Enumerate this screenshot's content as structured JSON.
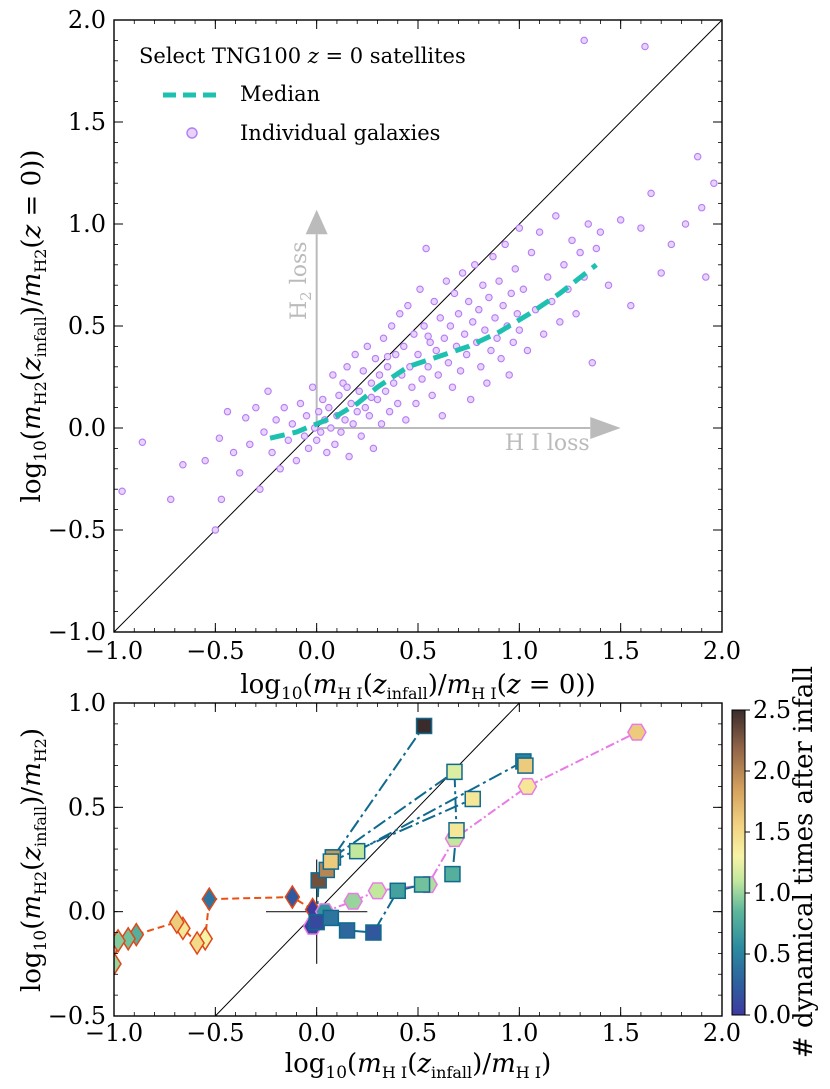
{
  "chart_data": [
    {
      "type": "scatter",
      "panel": "top",
      "xlabel": "log10(mHI(z_infall)/mHI(z=0))",
      "ylabel": "log10(mH2(z_infall)/mH2(z=0))",
      "xlim": [
        -1.0,
        2.0
      ],
      "ylim": [
        -1.0,
        2.0
      ],
      "xticks": [
        -1.0,
        -0.5,
        0.0,
        0.5,
        1.0,
        1.5,
        2.0
      ],
      "yticks": [
        -1.0,
        -0.5,
        0.0,
        0.5,
        1.0,
        1.5,
        2.0
      ],
      "xtick_labels": [
        "−1.0",
        "−0.5",
        "0.0",
        "0.5",
        "1.0",
        "1.5",
        "2.0"
      ],
      "ytick_labels": [
        "−1.0",
        "−0.5",
        "0.0",
        "0.5",
        "1.0",
        "1.5",
        "2.0"
      ],
      "legend": {
        "title": "Select TNG100 z = 0 satellites",
        "entries": [
          "Median",
          "Individual galaxies"
        ],
        "placement": "top-left"
      },
      "annotations": [
        {
          "text": "H I loss",
          "arrow": "from (0,0) to (1.5,0)"
        },
        {
          "text": "H2 loss",
          "arrow": "from (0,0) to (0,1.07)"
        }
      ],
      "one_to_one_line": true,
      "median": {
        "name": "Median",
        "color": "#1ec1b0",
        "x": [
          -0.23,
          -0.1,
          0.0,
          0.1,
          0.2,
          0.3,
          0.45,
          0.6,
          0.75,
          0.9,
          1.05,
          1.2,
          1.38
        ],
        "y": [
          -0.05,
          -0.02,
          0.02,
          0.06,
          0.12,
          0.2,
          0.3,
          0.35,
          0.4,
          0.47,
          0.56,
          0.66,
          0.8
        ]
      },
      "scatter_color": "#b77cf2",
      "scatter_fill": "#e6d4ff",
      "points": [
        [
          -0.96,
          -0.31
        ],
        [
          -0.86,
          -0.07
        ],
        [
          -0.72,
          -0.35
        ],
        [
          -0.66,
          -0.18
        ],
        [
          -0.55,
          -0.16
        ],
        [
          -0.48,
          -0.05
        ],
        [
          -0.47,
          -0.35
        ],
        [
          -0.44,
          0.08
        ],
        [
          -0.41,
          -0.12
        ],
        [
          -0.38,
          -0.22
        ],
        [
          -0.35,
          0.05
        ],
        [
          -0.33,
          -0.08
        ],
        [
          -0.3,
          0.1
        ],
        [
          -0.28,
          -0.3
        ],
        [
          -0.26,
          -0.02
        ],
        [
          -0.24,
          0.18
        ],
        [
          -0.22,
          -0.12
        ],
        [
          -0.2,
          0.04
        ],
        [
          -0.18,
          -0.2
        ],
        [
          -0.16,
          0.1
        ],
        [
          -0.14,
          -0.06
        ],
        [
          -0.12,
          0.02
        ],
        [
          -0.1,
          -0.16
        ],
        [
          -0.08,
          0.12
        ],
        [
          -0.06,
          -0.04
        ],
        [
          -0.05,
          0.06
        ],
        [
          -0.04,
          -0.1
        ],
        [
          -0.02,
          0.2
        ],
        [
          -0.01,
          0.0
        ],
        [
          0.0,
          -0.06
        ],
        [
          0.01,
          0.08
        ],
        [
          0.02,
          -0.02
        ],
        [
          0.03,
          0.14
        ],
        [
          0.04,
          0.04
        ],
        [
          0.05,
          -0.12
        ],
        [
          0.06,
          0.1
        ],
        [
          0.07,
          0.0
        ],
        [
          0.08,
          0.26
        ],
        [
          0.09,
          -0.08
        ],
        [
          0.1,
          0.06
        ],
        [
          0.11,
          0.16
        ],
        [
          0.12,
          -0.02
        ],
        [
          0.13,
          0.22
        ],
        [
          0.14,
          0.04
        ],
        [
          0.15,
          0.3
        ],
        [
          0.16,
          -0.14
        ],
        [
          0.17,
          0.12
        ],
        [
          0.18,
          0.02
        ],
        [
          0.19,
          0.36
        ],
        [
          0.2,
          0.08
        ],
        [
          0.21,
          0.18
        ],
        [
          0.22,
          -0.04
        ],
        [
          0.23,
          0.28
        ],
        [
          0.24,
          0.1
        ],
        [
          0.25,
          0.4
        ],
        [
          0.26,
          0.06
        ],
        [
          0.27,
          0.22
        ],
        [
          0.28,
          -0.1
        ],
        [
          0.29,
          0.34
        ],
        [
          0.3,
          0.14
        ],
        [
          0.31,
          0.26
        ],
        [
          0.32,
          0.02
        ],
        [
          0.33,
          0.44
        ],
        [
          0.34,
          0.18
        ],
        [
          0.35,
          0.3
        ],
        [
          0.36,
          0.08
        ],
        [
          0.37,
          0.5
        ],
        [
          0.38,
          0.22
        ],
        [
          0.39,
          0.36
        ],
        [
          0.4,
          0.12
        ],
        [
          0.41,
          0.56
        ],
        [
          0.42,
          0.26
        ],
        [
          0.43,
          0.4
        ],
        [
          0.44,
          0.04
        ],
        [
          0.45,
          0.6
        ],
        [
          0.46,
          0.3
        ],
        [
          0.47,
          0.2
        ],
        [
          0.48,
          0.46
        ],
        [
          0.49,
          0.12
        ],
        [
          0.5,
          0.36
        ],
        [
          0.51,
          0.68
        ],
        [
          0.52,
          0.24
        ],
        [
          0.53,
          0.5
        ],
        [
          0.54,
          0.88
        ],
        [
          0.55,
          0.3
        ],
        [
          0.56,
          0.42
        ],
        [
          0.57,
          0.16
        ],
        [
          0.58,
          0.62
        ],
        [
          0.59,
          0.38
        ],
        [
          0.6,
          0.26
        ],
        [
          0.61,
          0.54
        ],
        [
          0.62,
          0.06
        ],
        [
          0.63,
          0.44
        ],
        [
          0.64,
          0.72
        ],
        [
          0.65,
          0.32
        ],
        [
          0.66,
          0.5
        ],
        [
          0.67,
          0.2
        ],
        [
          0.68,
          0.66
        ],
        [
          0.69,
          0.4
        ],
        [
          0.7,
          0.56
        ],
        [
          0.71,
          0.28
        ],
        [
          0.72,
          0.76
        ],
        [
          0.73,
          0.46
        ],
        [
          0.74,
          0.36
        ],
        [
          0.75,
          0.62
        ],
        [
          0.76,
          0.14
        ],
        [
          0.77,
          0.52
        ],
        [
          0.78,
          0.8
        ],
        [
          0.79,
          0.42
        ],
        [
          0.8,
          0.58
        ],
        [
          0.81,
          0.3
        ],
        [
          0.82,
          0.7
        ],
        [
          0.83,
          0.48
        ],
        [
          0.84,
          0.22
        ],
        [
          0.85,
          0.64
        ],
        [
          0.86,
          0.38
        ],
        [
          0.87,
          0.84
        ],
        [
          0.88,
          0.54
        ],
        [
          0.89,
          0.44
        ],
        [
          0.9,
          0.72
        ],
        [
          0.91,
          0.34
        ],
        [
          0.92,
          0.6
        ],
        [
          0.93,
          0.9
        ],
        [
          0.94,
          0.5
        ],
        [
          0.95,
          0.26
        ],
        [
          0.96,
          0.66
        ],
        [
          0.97,
          0.42
        ],
        [
          0.98,
          0.78
        ],
        [
          0.99,
          0.56
        ],
        [
          1.0,
          0.48
        ],
        [
          1.02,
          0.68
        ],
        [
          1.04,
          0.38
        ],
        [
          1.06,
          0.86
        ],
        [
          1.08,
          0.58
        ],
        [
          1.1,
          0.96
        ],
        [
          1.12,
          0.46
        ],
        [
          1.14,
          0.74
        ],
        [
          1.16,
          0.62
        ],
        [
          1.18,
          1.04
        ],
        [
          1.2,
          0.52
        ],
        [
          1.22,
          0.8
        ],
        [
          1.24,
          0.68
        ],
        [
          1.26,
          0.92
        ],
        [
          1.28,
          0.56
        ],
        [
          1.3,
          0.86
        ],
        [
          1.32,
          0.74
        ],
        [
          1.34,
          1.0
        ],
        [
          1.36,
          0.32
        ],
        [
          1.38,
          0.88
        ],
        [
          1.4,
          0.96
        ],
        [
          1.44,
          0.7
        ],
        [
          1.5,
          1.02
        ],
        [
          1.55,
          0.6
        ],
        [
          1.6,
          0.98
        ],
        [
          1.65,
          1.15
        ],
        [
          1.7,
          0.76
        ],
        [
          1.75,
          0.9
        ],
        [
          1.82,
          1.0
        ],
        [
          1.88,
          1.33
        ],
        [
          1.92,
          0.74
        ],
        [
          1.96,
          1.2
        ],
        [
          1.9,
          1.08
        ],
        [
          1.62,
          1.87
        ],
        [
          1.32,
          1.9
        ],
        [
          1.0,
          0.98
        ],
        [
          0.55,
          0.45
        ],
        [
          0.27,
          0.15
        ],
        [
          -0.5,
          -0.5
        ],
        [
          0.15,
          0.2
        ],
        [
          0.35,
          0.35
        ]
      ]
    },
    {
      "type": "line",
      "panel": "bottom",
      "xlabel": "log10(mHI(z_infall)/mHI)",
      "ylabel": "log10(mH2(z_infall)/mH2)",
      "xlim": [
        -1.0,
        2.0
      ],
      "ylim": [
        -0.5,
        1.0
      ],
      "xticks": [
        -1.0,
        -0.5,
        0.0,
        0.5,
        1.0,
        1.5,
        2.0
      ],
      "yticks": [
        -0.5,
        0.0,
        0.5,
        1.0
      ],
      "xtick_labels": [
        "−1.0",
        "−0.5",
        "0.0",
        "0.5",
        "1.0",
        "1.5",
        "2.0"
      ],
      "ytick_labels": [
        "−0.5",
        "0.0",
        "0.5",
        "1.0"
      ],
      "one_to_one_line": true,
      "colorbar": {
        "label": "# dynamical times after infall",
        "range": [
          0.0,
          2.5
        ],
        "ticks": [
          0.0,
          0.5,
          1.0,
          1.5,
          2.0,
          2.5
        ],
        "tick_labels": [
          "0.0",
          "0.5",
          "1.0",
          "1.5",
          "2.0",
          "2.5"
        ]
      },
      "series": [
        {
          "name": "diamonds",
          "marker": "diamond",
          "line_color": "#ec4f12",
          "edge_color": "#e0471a",
          "points": [
            {
              "x": -0.02,
              "y": 0.01,
              "t": 0.0
            },
            {
              "x": -0.12,
              "y": 0.07,
              "t": 0.2
            },
            {
              "x": -0.53,
              "y": 0.06,
              "t": 0.4
            },
            {
              "x": -0.55,
              "y": -0.13,
              "t": 1.3
            },
            {
              "x": -0.59,
              "y": -0.15,
              "t": 1.5
            },
            {
              "x": -0.66,
              "y": -0.08,
              "t": 1.4
            },
            {
              "x": -0.69,
              "y": -0.05,
              "t": 1.6
            },
            {
              "x": -0.89,
              "y": -0.11,
              "t": 0.8
            },
            {
              "x": -0.93,
              "y": -0.13,
              "t": 0.9
            },
            {
              "x": -0.98,
              "y": -0.14,
              "t": 0.95
            },
            {
              "x": -1.0,
              "y": -0.25,
              "t": 1.0
            }
          ]
        },
        {
          "name": "hexagons",
          "marker": "hexagon",
          "line_color": "#e87be6",
          "edge_color": "#e87be6",
          "points": [
            {
              "x": -0.02,
              "y": -0.07,
              "t": 0.05
            },
            {
              "x": 0.04,
              "y": 0.0,
              "t": 0.6
            },
            {
              "x": 0.18,
              "y": 0.05,
              "t": 1.0
            },
            {
              "x": 0.3,
              "y": 0.1,
              "t": 1.1
            },
            {
              "x": 0.55,
              "y": 0.13,
              "t": 1.05
            },
            {
              "x": 0.68,
              "y": 0.35,
              "t": 1.1
            },
            {
              "x": 1.04,
              "y": 0.6,
              "t": 1.4
            },
            {
              "x": 1.58,
              "y": 0.86,
              "t": 1.6
            }
          ]
        },
        {
          "name": "squares",
          "marker": "square",
          "line_color": "#106a8e",
          "edge_color": "#106a8e",
          "branches": [
            [
              {
                "x": 0.0,
                "y": -0.05,
                "t": 0.1
              },
              {
                "x": 0.01,
                "y": 0.15,
                "t": 2.3
              },
              {
                "x": 0.05,
                "y": 0.2,
                "t": 2.0
              },
              {
                "x": 0.08,
                "y": 0.26,
                "t": 1.9
              },
              {
                "x": 0.53,
                "y": 0.89,
                "t": 2.5
              }
            ],
            [
              {
                "x": 0.08,
                "y": 0.26,
                "t": 1.9
              },
              {
                "x": 0.68,
                "y": 0.67,
                "t": 1.2
              },
              {
                "x": 0.69,
                "y": 0.39,
                "t": 1.4
              },
              {
                "x": 0.67,
                "y": 0.18,
                "t": 0.8
              }
            ],
            [
              {
                "x": 0.2,
                "y": 0.29,
                "t": 1.1
              },
              {
                "x": 1.02,
                "y": 0.72,
                "t": 0.5
              },
              {
                "x": 1.03,
                "y": 0.7,
                "t": 1.6
              }
            ],
            [
              {
                "x": 0.07,
                "y": 0.24,
                "t": 1.6
              },
              {
                "x": 0.77,
                "y": 0.54,
                "t": 1.4
              }
            ],
            [
              {
                "x": 0.07,
                "y": -0.03,
                "t": 0.4
              },
              {
                "x": 0.15,
                "y": -0.09,
                "t": 0.3
              },
              {
                "x": 0.28,
                "y": -0.1,
                "t": 0.2
              },
              {
                "x": 0.4,
                "y": 0.1,
                "t": 0.7
              },
              {
                "x": 0.52,
                "y": 0.13,
                "t": 0.9
              }
            ]
          ]
        }
      ],
      "error_bars": [
        {
          "x": 0.0,
          "y": 0.0,
          "xerr": 0.25,
          "yerr": 0.25
        }
      ]
    }
  ]
}
